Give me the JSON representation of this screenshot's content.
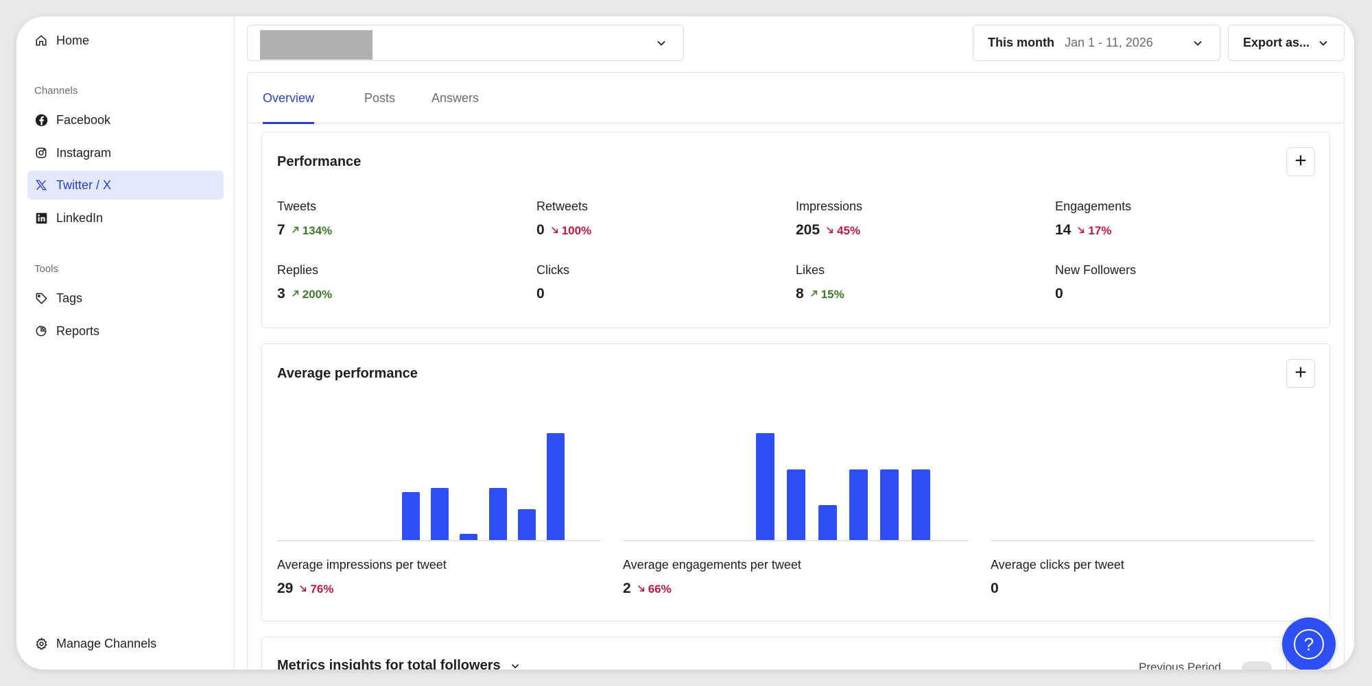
{
  "sidebar": {
    "home": "Home",
    "channels_label": "Channels",
    "channels": [
      {
        "label": "Facebook",
        "icon": "facebook-icon"
      },
      {
        "label": "Instagram",
        "icon": "instagram-icon"
      },
      {
        "label": "Twitter / X",
        "icon": "x-icon",
        "active": true
      },
      {
        "label": "LinkedIn",
        "icon": "linkedin-icon"
      }
    ],
    "tools_label": "Tools",
    "tools": [
      {
        "label": "Tags",
        "icon": "tag-icon"
      },
      {
        "label": "Reports",
        "icon": "pie-chart-icon"
      }
    ],
    "manage": "Manage Channels"
  },
  "topbar": {
    "date_label": "This month",
    "date_range": "Jan 1 - 11, 2026",
    "export_label": "Export as..."
  },
  "tabs": [
    "Overview",
    "Posts",
    "Answers"
  ],
  "performance": {
    "title": "Performance",
    "metrics": [
      {
        "label": "Tweets",
        "value": "7",
        "change": "134%",
        "dir": "up"
      },
      {
        "label": "Retweets",
        "value": "0",
        "change": "100%",
        "dir": "down"
      },
      {
        "label": "Impressions",
        "value": "205",
        "change": "45%",
        "dir": "down"
      },
      {
        "label": "Engagements",
        "value": "14",
        "change": "17%",
        "dir": "down"
      },
      {
        "label": "Replies",
        "value": "3",
        "change": "200%",
        "dir": "up"
      },
      {
        "label": "Clicks",
        "value": "0",
        "change": "",
        "dir": ""
      },
      {
        "label": "Likes",
        "value": "8",
        "change": "15%",
        "dir": "up"
      },
      {
        "label": "New Followers",
        "value": "0",
        "change": "",
        "dir": ""
      }
    ]
  },
  "average": {
    "title": "Average performance",
    "metrics": [
      {
        "label": "Average impressions per tweet",
        "value": "29",
        "change": "76%",
        "dir": "down"
      },
      {
        "label": "Average engagements per tweet",
        "value": "2",
        "change": "66%",
        "dir": "down"
      },
      {
        "label": "Average clicks per tweet",
        "value": "0",
        "change": "",
        "dir": ""
      }
    ]
  },
  "chart_data": [
    {
      "type": "bar",
      "values": [
        0,
        0,
        0,
        0,
        0,
        45,
        49,
        6,
        49,
        29,
        100
      ],
      "ylim": [
        0,
        100
      ]
    },
    {
      "type": "bar",
      "values": [
        0,
        0,
        0,
        0,
        100,
        66,
        33,
        66,
        66,
        66
      ],
      "ylim": [
        0,
        100
      ]
    },
    {
      "type": "bar",
      "values": [
        0,
        0,
        0,
        0,
        0,
        0,
        0,
        0,
        0,
        0
      ],
      "ylim": [
        0,
        100
      ]
    }
  ],
  "insights": {
    "title": "Metrics insights for total followers",
    "previous_period": "Previous Period"
  },
  "colors": {
    "accent": "#2a40c8",
    "bar": "#2d4ff5",
    "up": "#3e7a2a",
    "down": "#c0183c"
  }
}
